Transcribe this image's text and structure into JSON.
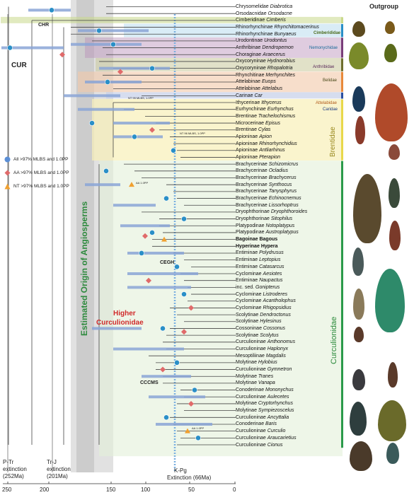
{
  "outgroup_label": "Outgroup",
  "taxa": [
    {
      "sub": "Chrysomelidae",
      "gen": "Diabrotica"
    },
    {
      "sub": "Orsodacnidae",
      "gen": "Orsodacne"
    },
    {
      "sub": "Cimberidinae",
      "gen": "Cimberis"
    },
    {
      "sub": "Rhinorhynchinae",
      "gen": "Rhynchitomacerinus"
    },
    {
      "sub": "Rhinorhynchinae",
      "gen": "Bunyaeus"
    },
    {
      "sub": "Urodontinae",
      "gen": "Urodontus"
    },
    {
      "sub": "Anthribinae",
      "gen": "Dendropemon"
    },
    {
      "sub": "Choraginae",
      "gen": "Araecerus"
    },
    {
      "sub": "Oxycoryninae",
      "gen": "Hydnorobius"
    },
    {
      "sub": "Oxycoryninae",
      "gen": "Rhopalotria"
    },
    {
      "sub": "Rhynchitinae",
      "gen": "Merhynchites"
    },
    {
      "sub": "Attelabinae",
      "gen": "Euops"
    },
    {
      "sub": "Attelabinae",
      "gen": "Attelabus"
    },
    {
      "sub": "Carinae",
      "gen": "Car"
    },
    {
      "sub": "Ithycerinae",
      "gen": "Ithycerus"
    },
    {
      "sub": "Eurhynchinae",
      "gen": "Eurhynchus"
    },
    {
      "sub": "Brentinae",
      "gen": "Trachelochismus"
    },
    {
      "sub": "Microcerinae",
      "gen": "Episus"
    },
    {
      "sub": "Brentinae",
      "gen": "Cylas"
    },
    {
      "sub": "Apioninae",
      "gen": "Apion"
    },
    {
      "sub": "Apioninae",
      "gen": "Rhinorhynchidius"
    },
    {
      "sub": "Apioninae",
      "gen": "Antliarhinus"
    },
    {
      "sub": "Apioninae",
      "gen": "Pterapion"
    },
    {
      "sub": "Brachycerinae",
      "gen": "Schizomicrus"
    },
    {
      "sub": "Brachycerinae",
      "gen": "Ocladius"
    },
    {
      "sub": "Brachycerinae",
      "gen": "Brachycerus"
    },
    {
      "sub": "Brachycerinae",
      "gen": "Synthocus"
    },
    {
      "sub": "Brachycerinae",
      "gen": "Tanysphyrus"
    },
    {
      "sub": "Brachycerinae",
      "gen": "Echinocnemus"
    },
    {
      "sub": "Brachycerinae",
      "gen": "Lissorhoptrus"
    },
    {
      "sub": "Dryophthorinae",
      "gen": "Dryophthoroides"
    },
    {
      "sub": "Dryophthorinae",
      "gen": "Sitophilus"
    },
    {
      "sub": "Platypodinae",
      "gen": "Notoplatypus"
    },
    {
      "sub": "Platypodinae",
      "gen": "Austroplatypus"
    },
    {
      "sub": "Bagoinae",
      "gen": "Bagous",
      "bold": true
    },
    {
      "sub": "Hyperinae",
      "gen": "Hypera",
      "bold": true
    },
    {
      "sub": "Entiminae",
      "gen": "Polydrusus"
    },
    {
      "sub": "Entiminae",
      "gen": "Leptopius"
    },
    {
      "sub": "Entiminae",
      "gen": "Catasarcus"
    },
    {
      "sub": "Cyclominae",
      "gen": "Aesiotes"
    },
    {
      "sub": "Entiminae",
      "gen": "Naupactus"
    },
    {
      "sub": "inc. sed.",
      "gen": "Gonipterus"
    },
    {
      "sub": "Cyclominae",
      "gen": "Listroderes"
    },
    {
      "sub": "Cyclominae",
      "gen": "Acantholophus"
    },
    {
      "sub": "Cyclominae",
      "gen": "Rhigopsidius"
    },
    {
      "sub": "Scolytinae",
      "gen": "Dendroctonus"
    },
    {
      "sub": "Scolytinae",
      "gen": "Hylesinus"
    },
    {
      "sub": "Cossoninae",
      "gen": "Cossonus"
    },
    {
      "sub": "Scolytinae",
      "gen": "Scolytus"
    },
    {
      "sub": "Curculioninae",
      "gen": "Anthonomus"
    },
    {
      "sub": "Curculioninae",
      "gen": "Haplonyx"
    },
    {
      "sub": "Mesoptiliinae",
      "gen": "Magdalis"
    },
    {
      "sub": "Molytinae",
      "gen": "Hylobius"
    },
    {
      "sub": "Curculioninae",
      "gen": "Gymnetron"
    },
    {
      "sub": "Molytinae",
      "gen": "Tranes"
    },
    {
      "sub": "Molytinae",
      "gen": "Vanapa"
    },
    {
      "sub": "Conoderinae",
      "gen": "Mononychus"
    },
    {
      "sub": "Curculioninae",
      "gen": "Aulecetes"
    },
    {
      "sub": "Molytinae",
      "gen": "Cryptorhynchus"
    },
    {
      "sub": "Molytinae",
      "gen": "Sympiezoscelus"
    },
    {
      "sub": "Curculioninae",
      "gen": "Ancyttalia"
    },
    {
      "sub": "Conoderinae",
      "gen": "Baris"
    },
    {
      "sub": "Curculioninae",
      "gen": "Curculio"
    },
    {
      "sub": "Curculioninae",
      "gen": "Araucarietius"
    },
    {
      "sub": "Curculioninae",
      "gen": "Cionus"
    }
  ],
  "families": {
    "cimberididae": "Cimberididae",
    "nemonychidae": "Nemonychidae",
    "anthribidae": "Anthribidae",
    "belidae": "Belidae",
    "attelabidae": "Attelabidae",
    "caridae": "Caridae",
    "brentidae": "Brentidae",
    "curculionidae": "Curculionidae"
  },
  "node_labels": {
    "chr": "CHR",
    "cur": "CUR",
    "cegh": "CEGH",
    "cccms": "CCCMS",
    "nt1": "NT 95 MLBS,  1.0PP",
    "nt2": "NT 96 MLBS,  1.0PP",
    "aa1": "AA 1.0PP",
    "aa2": "AA 1.0PP"
  },
  "legend": [
    {
      "text": "All >97% MLBS and 1.0PP",
      "color": "#5b8fd6",
      "shape": "circle"
    },
    {
      "text": "AA >97% MLBS and 1.0PP",
      "color": "#e06a6a",
      "shape": "diamond"
    },
    {
      "text": "NT >97% MLBS and 1.0PP",
      "color": "#f0a030",
      "shape": "triangle"
    }
  ],
  "annotations": {
    "angiosperms": "Estimated Origin of Angiosperms",
    "higher1": "Higher",
    "higher2": "Curculionidae",
    "ptr1": "P-Tr",
    "ptr2": "extinction",
    "ptr3": "(252Ma)",
    "trj1": "Tr-J",
    "trj2": "extinction",
    "trj3": "(201Ma)",
    "kpg1": "K-Pg",
    "kpg2": "Extinction (66Ma)"
  },
  "axis_ticks": [
    "250",
    "200",
    "150",
    "100",
    "50",
    "0"
  ],
  "colors": {
    "angiosperm_band": "#c8c8c8",
    "cimberididae": "#c9d98a",
    "nemonychidae": "#2a8fc7",
    "anthribidae": "#7a3d7a",
    "belidae": "#6e6e2e",
    "attelabidae": "#e8893a",
    "caridae": "#2a4fa0",
    "brentidae": "#e8d84a",
    "curculionidae": "#2a9a4a",
    "kpg_line": "#7ab0e0"
  }
}
